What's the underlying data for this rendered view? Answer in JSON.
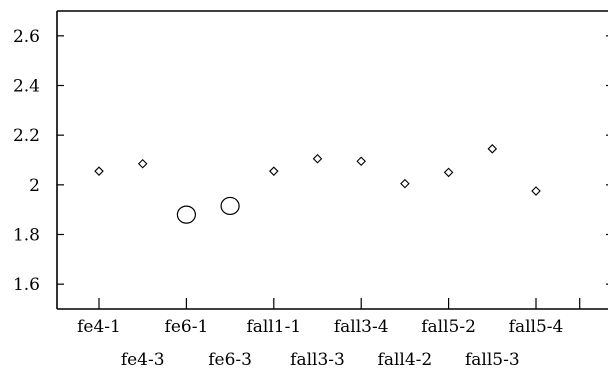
{
  "chart_data": {
    "type": "scatter",
    "title": "",
    "xlabel": "",
    "ylabel": "",
    "categories": [
      "fe4-1",
      "fe4-3",
      "fe6-1",
      "fe6-3",
      "fall1-1",
      "fall3-3",
      "fall3-4",
      "fall4-2",
      "fall5-2",
      "fall5-3",
      "fall5-4"
    ],
    "ylim": [
      1.5,
      2.7
    ],
    "y_ticks": [
      "1.6",
      "1.8",
      "2",
      "2.2",
      "2.4",
      "2.6"
    ],
    "grid": false,
    "legend": "none",
    "series": [
      {
        "marker": "diamond",
        "points": [
          {
            "x": "fe4-1",
            "y": 2.055
          },
          {
            "x": "fe4-3",
            "y": 2.085
          },
          {
            "x": "fall1-1",
            "y": 2.055
          },
          {
            "x": "fall3-3",
            "y": 2.105
          },
          {
            "x": "fall3-4",
            "y": 2.095
          },
          {
            "x": "fall4-2",
            "y": 2.005
          },
          {
            "x": "fall5-2",
            "y": 2.05
          },
          {
            "x": "fall5-3",
            "y": 2.145
          },
          {
            "x": "fall5-4",
            "y": 1.975
          }
        ]
      },
      {
        "marker": "circle",
        "points": [
          {
            "x": "fe6-1",
            "y": 1.88
          },
          {
            "x": "fe6-3",
            "y": 1.915
          }
        ]
      }
    ]
  }
}
